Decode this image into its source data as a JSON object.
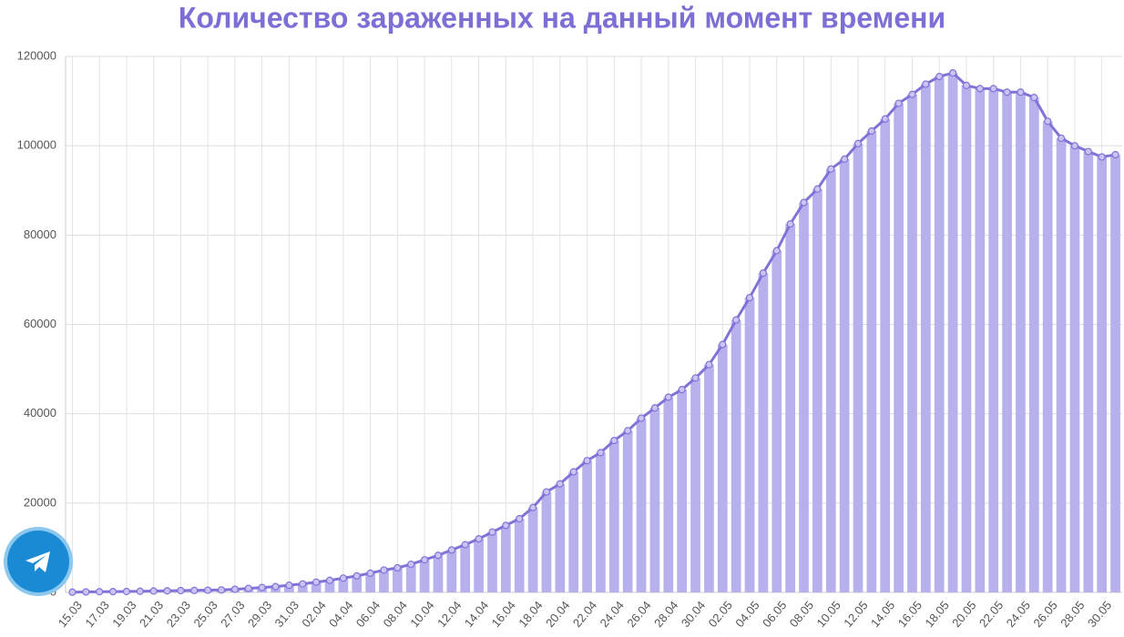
{
  "chart_data": {
    "type": "bar-line",
    "title": "Количество зараженных на данный момент времени",
    "categories": [
      "15.03",
      null,
      "17.03",
      null,
      "19.03",
      null,
      "21.03",
      null,
      "23.03",
      null,
      "25.03",
      null,
      "27.03",
      null,
      "29.03",
      null,
      "31.03",
      null,
      "02.04",
      null,
      "04.04",
      null,
      "06.04",
      null,
      "08.04",
      null,
      "10.04",
      null,
      "12.04",
      null,
      "14.04",
      null,
      "16.04",
      null,
      "18.04",
      null,
      "20.04",
      null,
      "22.04",
      null,
      "24.04",
      null,
      "26.04",
      null,
      "28.04",
      null,
      "30.04",
      null,
      "02.05",
      null,
      "04.05",
      null,
      "06.05",
      null,
      "08.05",
      null,
      "10.05",
      null,
      "12.05",
      null,
      "14.05",
      null,
      "16.05",
      null,
      "18.05",
      null,
      "20.05",
      null,
      "22.05",
      null,
      "24.05",
      null,
      "26.05",
      null,
      "28.05",
      null,
      "30.05",
      null
    ],
    "values": [
      50,
      100,
      150,
      180,
      200,
      250,
      300,
      350,
      400,
      450,
      500,
      550,
      700,
      900,
      1100,
      1300,
      1600,
      1900,
      2300,
      2700,
      3200,
      3700,
      4300,
      5000,
      5500,
      6300,
      7300,
      8300,
      9500,
      10700,
      12000,
      13500,
      15000,
      16500,
      19000,
      22500,
      24300,
      27000,
      29500,
      31300,
      34000,
      36200,
      39000,
      41300,
      43700,
      45400,
      48000,
      51000,
      55500,
      61000,
      66000,
      71500,
      76500,
      82500,
      87300,
      90300,
      94800,
      97000,
      100500,
      103300,
      106000,
      109500,
      111500,
      113800,
      115500,
      116300,
      113500,
      112800,
      112800,
      112000,
      112000,
      110800,
      105500,
      101700,
      100000,
      98700,
      97500,
      98000
    ],
    "bar_color": "#b6b0ed",
    "line_color": "#8073d8",
    "ylim": [
      0,
      120000
    ],
    "yticks": [
      0,
      20000,
      40000,
      60000,
      80000,
      100000,
      120000
    ],
    "grid": true
  }
}
